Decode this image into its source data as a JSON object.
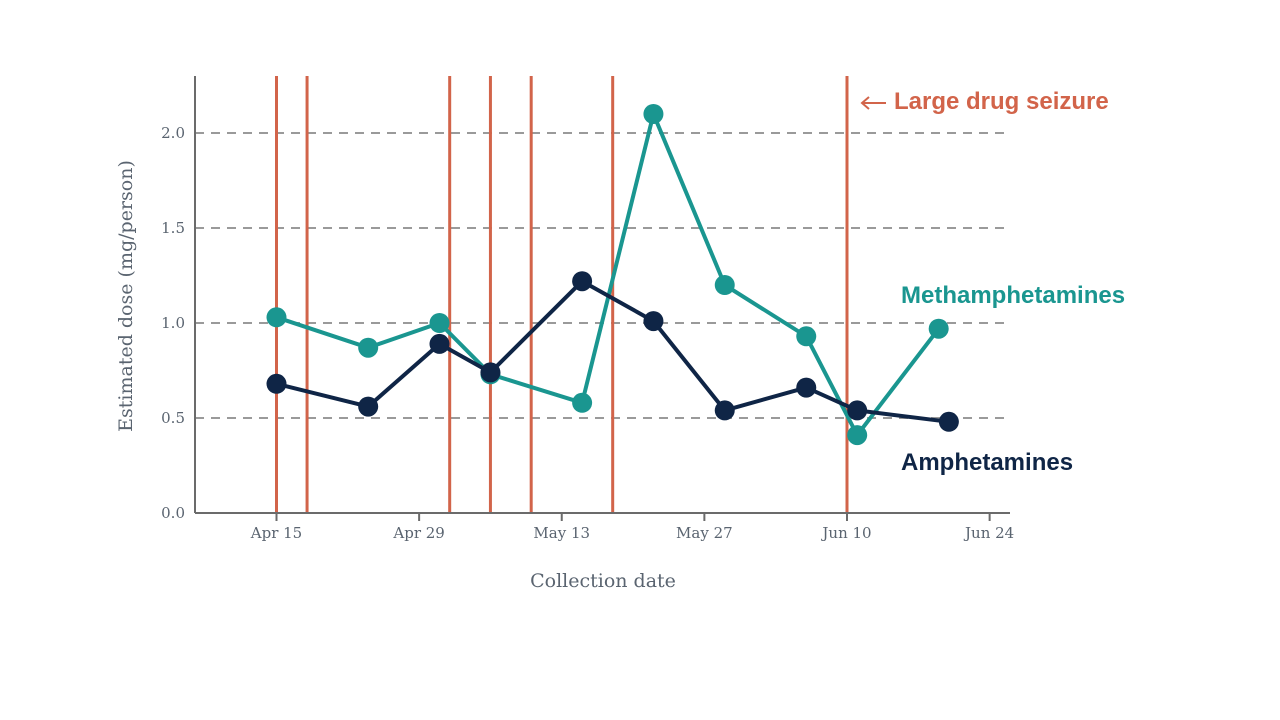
{
  "colors": {
    "methamphetamines": "#1a9690",
    "amphetamines": "#0f2546",
    "event": "#d2644a",
    "grid": "#9a9a9a",
    "axis": "#6b6b6b"
  },
  "chart_data": {
    "type": "line",
    "xlabel": "Collection date",
    "ylabel": "Estimated dose (mg/person)",
    "xlim": [
      "2023-04-07",
      "2023-06-26"
    ],
    "ylim": [
      0,
      2.3
    ],
    "grid": "horizontal dashed",
    "x_ticks": [
      {
        "date": "2023-04-15",
        "label": "Apr 15"
      },
      {
        "date": "2023-04-29",
        "label": "Apr 29"
      },
      {
        "date": "2023-05-13",
        "label": "May 13"
      },
      {
        "date": "2023-05-27",
        "label": "May 27"
      },
      {
        "date": "2023-06-10",
        "label": "Jun 10"
      },
      {
        "date": "2023-06-24",
        "label": "Jun 24"
      }
    ],
    "y_ticks": [
      {
        "value": 0,
        "label": "0.0"
      },
      {
        "value": 0.5,
        "label": "0.5"
      },
      {
        "value": 1.0,
        "label": "1.0"
      },
      {
        "value": 1.5,
        "label": "1.5"
      },
      {
        "value": 2.0,
        "label": "2.0"
      }
    ],
    "series": [
      {
        "name": "Methamphetamines",
        "color": "#1a9690",
        "points": [
          {
            "x": "2023-04-15",
            "y": 1.03
          },
          {
            "x": "2023-04-24",
            "y": 0.87
          },
          {
            "x": "2023-05-01",
            "y": 1.0
          },
          {
            "x": "2023-05-06",
            "y": 0.73
          },
          {
            "x": "2023-05-15",
            "y": 0.58
          },
          {
            "x": "2023-05-22",
            "y": 2.1
          },
          {
            "x": "2023-05-29",
            "y": 1.2
          },
          {
            "x": "2023-06-06",
            "y": 0.93
          },
          {
            "x": "2023-06-11",
            "y": 0.41
          },
          {
            "x": "2023-06-19",
            "y": 0.97
          }
        ]
      },
      {
        "name": "Amphetamines",
        "color": "#0f2546",
        "points": [
          {
            "x": "2023-04-15",
            "y": 0.68
          },
          {
            "x": "2023-04-24",
            "y": 0.56
          },
          {
            "x": "2023-05-01",
            "y": 0.89
          },
          {
            "x": "2023-05-06",
            "y": 0.74
          },
          {
            "x": "2023-05-15",
            "y": 1.22
          },
          {
            "x": "2023-05-22",
            "y": 1.01
          },
          {
            "x": "2023-05-29",
            "y": 0.54
          },
          {
            "x": "2023-06-06",
            "y": 0.66
          },
          {
            "x": "2023-06-11",
            "y": 0.54
          },
          {
            "x": "2023-06-20",
            "y": 0.48
          }
        ]
      }
    ],
    "events": {
      "label": "Large drug seizure",
      "dates": [
        "2023-04-15",
        "2023-04-18",
        "2023-05-02",
        "2023-05-06",
        "2023-05-10",
        "2023-05-18",
        "2023-06-10"
      ]
    }
  }
}
